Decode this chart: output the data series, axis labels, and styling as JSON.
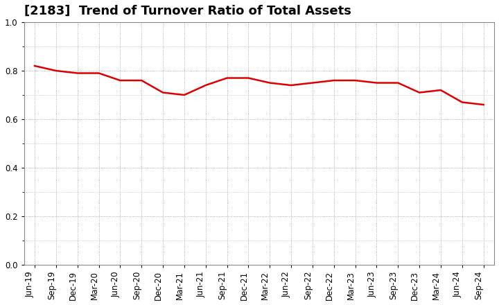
{
  "title": "[2183]  Trend of Turnover Ratio of Total Assets",
  "x_labels": [
    "Jun-19",
    "Sep-19",
    "Dec-19",
    "Mar-20",
    "Jun-20",
    "Sep-20",
    "Dec-20",
    "Mar-21",
    "Jun-21",
    "Sep-21",
    "Dec-21",
    "Mar-22",
    "Jun-22",
    "Sep-22",
    "Dec-22",
    "Mar-23",
    "Jun-23",
    "Sep-23",
    "Dec-23",
    "Mar-24",
    "Jun-24",
    "Sep-24"
  ],
  "y_values": [
    0.82,
    0.8,
    0.79,
    0.79,
    0.76,
    0.76,
    0.71,
    0.7,
    0.74,
    0.77,
    0.77,
    0.75,
    0.74,
    0.75,
    0.76,
    0.76,
    0.75,
    0.75,
    0.71,
    0.72,
    0.67,
    0.66
  ],
  "ylim": [
    0.0,
    1.0
  ],
  "yticks": [
    0.0,
    0.2,
    0.4,
    0.6,
    0.8,
    1.0
  ],
  "line_color": "#dd0000",
  "line_width": 1.8,
  "grid_color": "#999999",
  "bg_color": "#ffffff",
  "title_fontsize": 13,
  "tick_fontsize": 8.5,
  "xlabel_rotation": 90
}
